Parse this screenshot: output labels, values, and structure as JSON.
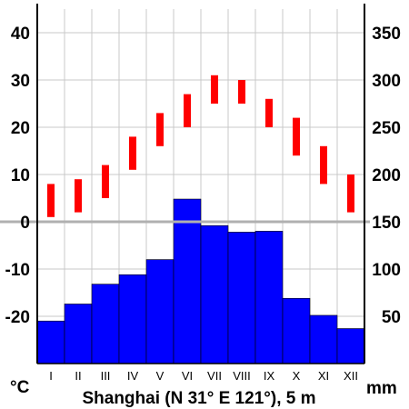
{
  "chart_data": {
    "type": "climate-diagram",
    "title": "Shanghai (N 31° E 121°), 5 m",
    "categories": [
      "I",
      "II",
      "III",
      "IV",
      "V",
      "VI",
      "VII",
      "VIII",
      "IX",
      "X",
      "XI",
      "XII"
    ],
    "left_axis": {
      "unit": "°C",
      "ticks": [
        "40",
        "30",
        "20",
        "10",
        "0",
        "-10",
        "-20"
      ],
      "range": [
        -30,
        45
      ]
    },
    "right_axis": {
      "unit": "mm",
      "ticks": [
        "350",
        "300",
        "250",
        "200",
        "150",
        "100",
        "50"
      ],
      "range": [
        0,
        375
      ]
    },
    "temperature": {
      "color": "#ff0000",
      "min": [
        1,
        2,
        5,
        11,
        16,
        20,
        25,
        25,
        20,
        14,
        8,
        2
      ],
      "max": [
        8,
        9,
        12,
        18,
        23,
        27,
        31,
        30,
        26,
        22,
        16,
        10
      ]
    },
    "precipitation": {
      "color": "#0000ff",
      "values": [
        45,
        63,
        84,
        94,
        110,
        174,
        146,
        139,
        140,
        69,
        51,
        37
      ]
    },
    "grid": true,
    "zero_line_color": "#b0b0b0"
  }
}
